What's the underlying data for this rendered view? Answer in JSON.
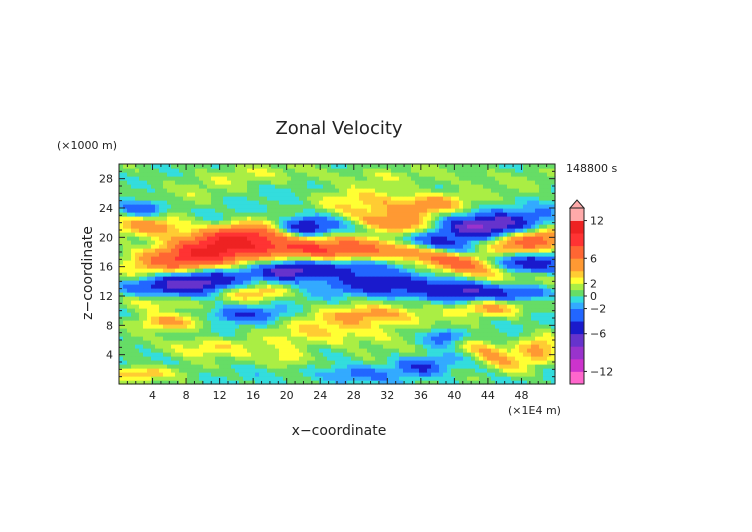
{
  "chart_data": {
    "type": "heatmap",
    "title": "Zonal Velocity",
    "xlabel": "x−coordinate",
    "ylabel": "z−coordinate",
    "x_unit": "(×1E4 m)",
    "y_unit": "(×1000 m)",
    "time_label": "148800 s",
    "xlim": [
      0,
      52
    ],
    "ylim": [
      0,
      30
    ],
    "x_ticks": [
      4,
      8,
      12,
      16,
      20,
      24,
      28,
      32,
      36,
      40,
      44,
      48
    ],
    "y_ticks": [
      4,
      8,
      12,
      16,
      20,
      24,
      28
    ],
    "field_range": [
      -14,
      14
    ],
    "colorbar": {
      "levels": [
        -14,
        -12,
        -10,
        -8,
        -6,
        -4,
        -2,
        -1,
        0,
        1,
        2,
        3,
        4,
        6,
        8,
        10,
        12,
        14
      ],
      "colors": [
        "#ff66cc",
        "#cc33cc",
        "#9933cc",
        "#6633cc",
        "#1a1acc",
        "#2266ff",
        "#33aaff",
        "#33dddd",
        "#66dd66",
        "#aaee44",
        "#ffff33",
        "#ffcc33",
        "#ff9933",
        "#ff6633",
        "#ff3333",
        "#ee2222",
        "#ffaaaa"
      ],
      "tick_values": [
        12,
        6,
        2,
        0,
        -2,
        -6,
        -12
      ],
      "tick_labels": [
        "12",
        "6",
        "2",
        "0",
        "−2",
        "−6",
        "−12"
      ],
      "extend": "max"
    },
    "grid": false,
    "features": [
      {
        "x": 10,
        "z": 17.5,
        "amp": 9,
        "sx": 6,
        "sz": 1.5,
        "tilt": 0.12
      },
      {
        "x": 8,
        "z": 13.8,
        "amp": -8,
        "sx": 5,
        "sz": 1.2,
        "tilt": 0.1
      },
      {
        "x": 4,
        "z": 11.5,
        "amp": 4,
        "sx": 3,
        "sz": 1.0,
        "tilt": 0.0
      },
      {
        "x": 14,
        "z": 20.5,
        "amp": 6,
        "sx": 5,
        "sz": 1.2,
        "tilt": 0.15
      },
      {
        "x": 4,
        "z": 21.5,
        "amp": 5,
        "sx": 3,
        "sz": 1.0,
        "tilt": 0.0
      },
      {
        "x": 3,
        "z": 24,
        "amp": -5,
        "sx": 2,
        "sz": 0.8,
        "tilt": 0.0
      },
      {
        "x": 22,
        "z": 21.5,
        "amp": -8,
        "sx": 2.5,
        "sz": 1.0,
        "tilt": 0.0
      },
      {
        "x": 24,
        "z": 18.5,
        "amp": 8,
        "sx": 6,
        "sz": 1.3,
        "tilt": -0.05
      },
      {
        "x": 25,
        "z": 16.0,
        "amp": -6,
        "sx": 5,
        "sz": 1.0,
        "tilt": 0.0
      },
      {
        "x": 20,
        "z": 15.3,
        "amp": -5,
        "sx": 2,
        "sz": 0.8,
        "tilt": 0.0
      },
      {
        "x": 33,
        "z": 21.5,
        "amp": 8,
        "sx": 4,
        "sz": 1.2,
        "tilt": -0.15
      },
      {
        "x": 36,
        "z": 19.5,
        "amp": -7,
        "sx": 6,
        "sz": 1.0,
        "tilt": -0.25
      },
      {
        "x": 40,
        "z": 17.0,
        "amp": 8,
        "sx": 6,
        "sz": 1.2,
        "tilt": -0.25
      },
      {
        "x": 43,
        "z": 21.5,
        "amp": -8,
        "sx": 5,
        "sz": 1.2,
        "tilt": 0.1
      },
      {
        "x": 49,
        "z": 19.5,
        "amp": 7,
        "sx": 4,
        "sz": 1.2,
        "tilt": 0.15
      },
      {
        "x": 48,
        "z": 16.5,
        "amp": -6,
        "sx": 3,
        "sz": 1.0,
        "tilt": 0.0
      },
      {
        "x": 37,
        "z": 24.5,
        "amp": 5,
        "sx": 3,
        "sz": 1.0,
        "tilt": 0.1
      },
      {
        "x": 30,
        "z": 25,
        "amp": 3,
        "sx": 4,
        "sz": 1.2,
        "tilt": 0.0
      },
      {
        "x": 16,
        "z": 12.5,
        "amp": 4,
        "sx": 3,
        "sz": 0.8,
        "tilt": 0.0
      },
      {
        "x": 33,
        "z": 13.5,
        "amp": -6,
        "sx": 5,
        "sz": 1.0,
        "tilt": 0.0
      },
      {
        "x": 41,
        "z": 12.5,
        "amp": -5,
        "sx": 3,
        "sz": 0.8,
        "tilt": 0.0
      },
      {
        "x": 31,
        "z": 9.5,
        "amp": 4,
        "sx": 5,
        "sz": 1.0,
        "tilt": 0.0
      },
      {
        "x": 44,
        "z": 10.5,
        "amp": 4,
        "sx": 3,
        "sz": 0.8,
        "tilt": 0.0
      },
      {
        "x": 15,
        "z": 9.5,
        "amp": -4,
        "sx": 3,
        "sz": 0.8,
        "tilt": 0.0
      },
      {
        "x": 6,
        "z": 8.5,
        "amp": 4,
        "sx": 3,
        "sz": 0.8,
        "tilt": 0.0
      },
      {
        "x": 48,
        "z": 12.5,
        "amp": -4,
        "sx": 3,
        "sz": 0.8,
        "tilt": 0.0
      },
      {
        "x": 26,
        "z": 7,
        "amp": 3,
        "sx": 6,
        "sz": 1.5,
        "tilt": 0.0
      },
      {
        "x": 36,
        "z": 2.5,
        "amp": -4,
        "sx": 2,
        "sz": 0.8,
        "tilt": 0.0
      },
      {
        "x": 20,
        "z": 3.5,
        "amp": 3,
        "sx": 2,
        "sz": 1.0,
        "tilt": 0.0
      },
      {
        "x": 44,
        "z": 4.5,
        "amp": 5,
        "sx": 3,
        "sz": 1.0,
        "tilt": -0.5
      },
      {
        "x": 39,
        "z": 6.5,
        "amp": -5,
        "sx": 2,
        "sz": 0.8,
        "tilt": 0.0
      },
      {
        "x": 2,
        "z": 1.5,
        "amp": 4,
        "sx": 3,
        "sz": 0.8,
        "tilt": 0.0
      },
      {
        "x": 10,
        "z": 5,
        "amp": 3,
        "sx": 4,
        "sz": 1.0,
        "tilt": 0.0
      },
      {
        "x": 50,
        "z": 5,
        "amp": 4,
        "sx": 2,
        "sz": 1.5,
        "tilt": 0.0
      },
      {
        "x": 28,
        "z": 1.5,
        "amp": -3,
        "sx": 3,
        "sz": 0.8,
        "tilt": 0.0
      },
      {
        "x": 8,
        "z": 27,
        "amp": 1.2,
        "sx": 8,
        "sz": 2.0,
        "tilt": 0.3
      },
      {
        "x": 26,
        "z": 28.5,
        "amp": 1.5,
        "sx": 8,
        "sz": 1.0,
        "tilt": 0.0
      },
      {
        "x": 44,
        "z": 28,
        "amp": 1.2,
        "sx": 5,
        "sz": 1.5,
        "tilt": 0.0
      }
    ]
  }
}
